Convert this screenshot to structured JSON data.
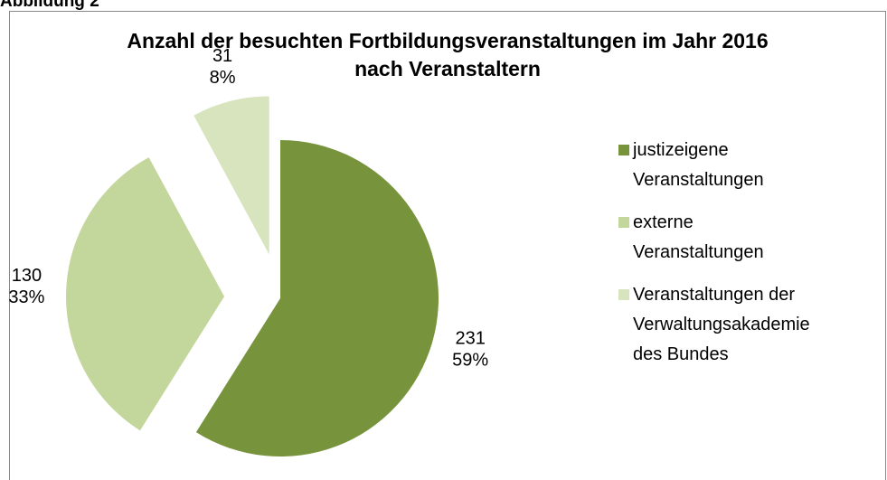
{
  "figure_label": "Abbildung 2",
  "chart_data": {
    "type": "pie",
    "title": "Anzahl der besuchten Fortbildungsveranstaltungen im Jahr 2016\nnach Veranstaltern",
    "categories": [
      "justizeigene\nVeranstaltungen",
      "externe\nVeranstaltungen",
      "Veranstaltungen der\nVerwaltungsakademie\ndes Bundes"
    ],
    "values": [
      231,
      130,
      31
    ],
    "percentages": [
      59,
      33,
      8
    ],
    "percentage_labels": [
      "59%",
      "33%",
      "8%"
    ],
    "colors": [
      "#77933c",
      "#c3d69b",
      "#d7e4bd"
    ],
    "legend": "right"
  }
}
